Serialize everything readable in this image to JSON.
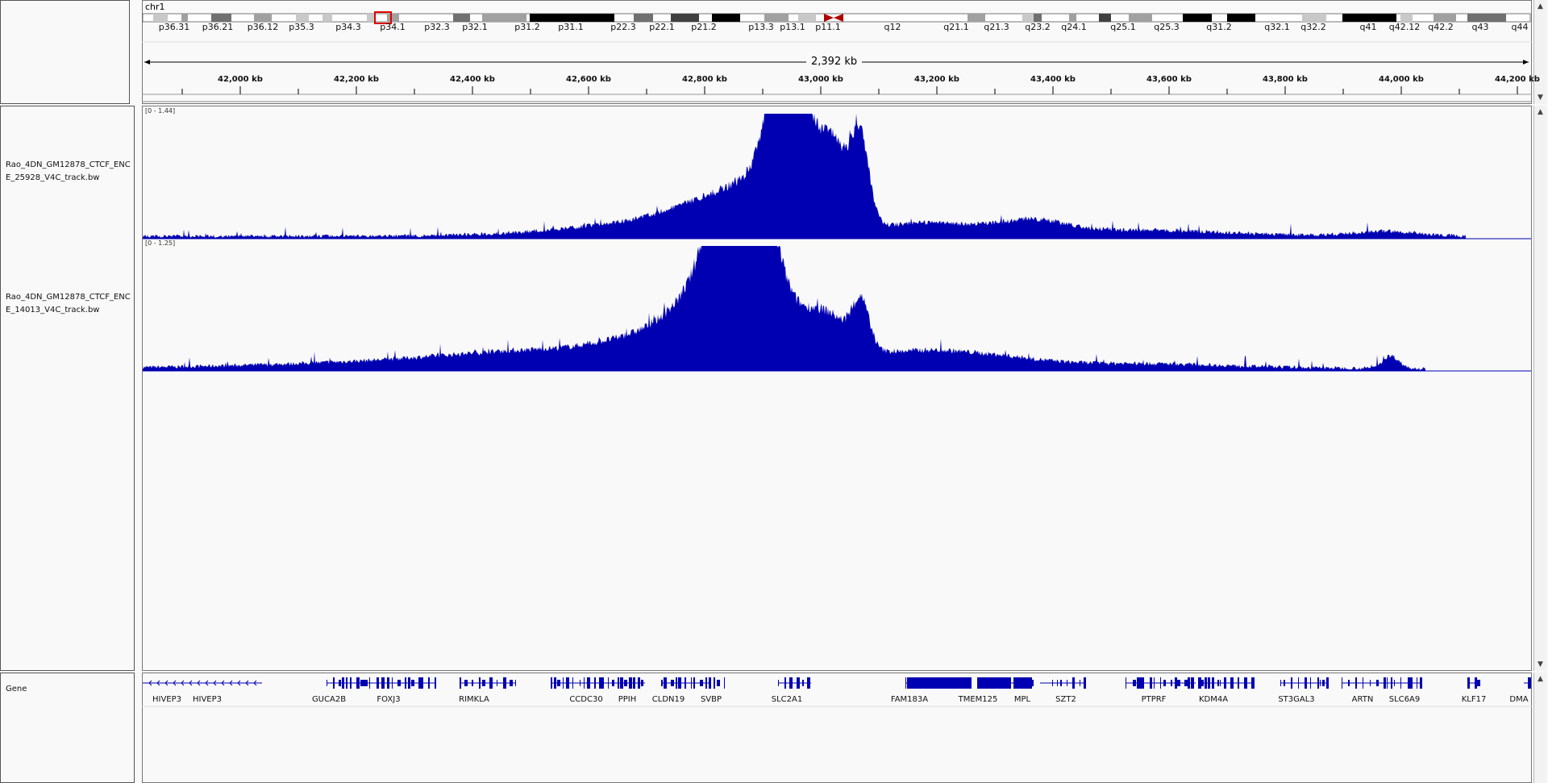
{
  "chromosome": "chr1",
  "cytobands": [
    "p36.31",
    "p36.21",
    "p36.12",
    "p35.3",
    "p34.3",
    "p34.1",
    "p32.3",
    "p32.1",
    "p31.2",
    "p31.1",
    "p22.3",
    "p22.1",
    "p21.2",
    "p13.3",
    "p13.1",
    "p11.1",
    "q12",
    "q21.1",
    "q21.3",
    "q23.2",
    "q24.1",
    "q25.1",
    "q25.3",
    "q31.2",
    "q32.1",
    "q32.2",
    "q41",
    "q42.12",
    "q42.2",
    "q43",
    "q44"
  ],
  "ruler": {
    "span_label": "2,392 kb",
    "ticks": [
      "42,000 kb",
      "42,200 kb",
      "42,400 kb",
      "42,600 kb",
      "42,800 kb",
      "43,000 kb",
      "43,200 kb",
      "43,400 kb",
      "43,600 kb",
      "43,800 kb",
      "44,000 kb",
      "44,200 kb"
    ]
  },
  "tracks": [
    {
      "name": "Rao_4DN_GM12878_CTCF_ENCE_25928_V4C_track.bw",
      "range": "[0 - 1.44]"
    },
    {
      "name": "Rao_4DN_GM12878_CTCF_ENCE_14013_V4C_track.bw",
      "range": "[0 - 1.25]"
    }
  ],
  "gene_track": {
    "name": "Gene",
    "genes": [
      "HIVEP3",
      "HIVEP3",
      "GUCA2B",
      "FOXJ3",
      "RIMKLA",
      "CCDC30",
      "PPIH",
      "CLDN19",
      "SVBP",
      "SLC2A1",
      "FAM183A",
      "TMEM125",
      "MPL",
      "SZT2",
      "PTPRF",
      "KDM4A",
      "ST3GAL3",
      "ARTN",
      "SLC6A9",
      "KLF17",
      "DMA"
    ]
  },
  "colors": {
    "signal": "#0000b2",
    "gene": "#0000b2",
    "highlight": "#e00000",
    "centromere": "#b00000"
  }
}
